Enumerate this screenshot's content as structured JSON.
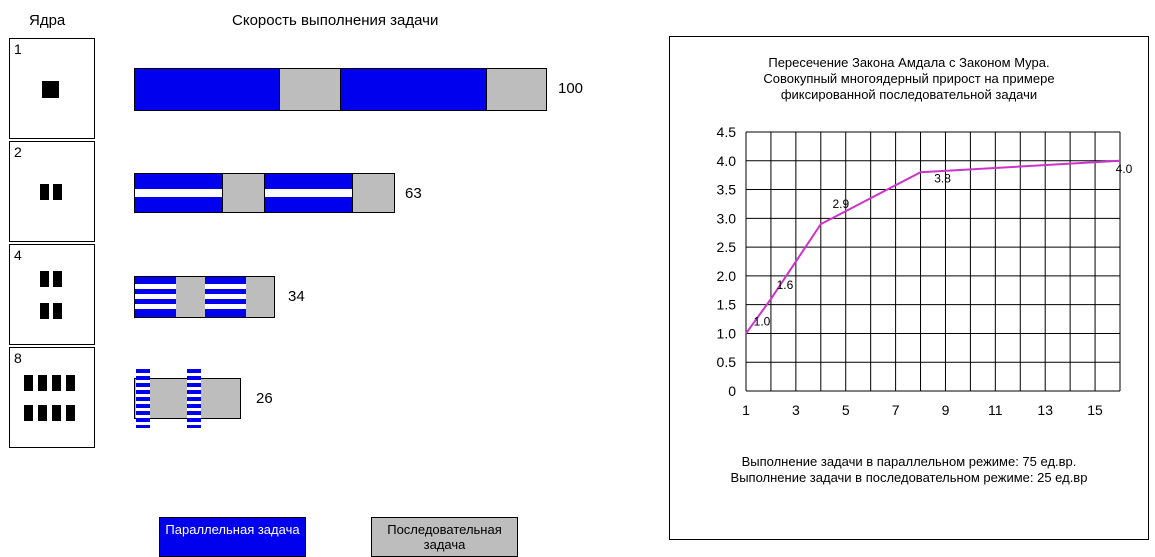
{
  "headers": {
    "cores": "Ядра",
    "speed": "Скорость выполнения задачи"
  },
  "cores": [
    {
      "label": "1",
      "speed": "100"
    },
    {
      "label": "2",
      "speed": "63"
    },
    {
      "label": "4",
      "speed": "34"
    },
    {
      "label": "8",
      "speed": "26"
    }
  ],
  "legend": {
    "parallel": "Параллельная задача",
    "sequential": "Последовательная задача"
  },
  "colors": {
    "parallel": "#0000ee",
    "sequential": "#bdbdbd",
    "curve": "#cc33cc"
  },
  "chart_data": {
    "type": "line",
    "title": [
      "Пересечение Закона Амдала с Законом Мура.",
      "Совокупный многоядерный прирост на примере",
      "фиксированной последовательной задачи"
    ],
    "x": [
      1,
      2,
      4,
      8,
      16
    ],
    "y": [
      1.0,
      1.6,
      2.9,
      3.8,
      4.0
    ],
    "point_labels": [
      "1.0",
      "1.6",
      "2.9",
      "3.8",
      "4.0"
    ],
    "xlim": [
      1,
      16
    ],
    "ylim": [
      0,
      4.5
    ],
    "xticks": [
      "1",
      "3",
      "5",
      "7",
      "9",
      "11",
      "13",
      "15"
    ],
    "yticks": [
      "0",
      "0.5",
      "1.0",
      "1.5",
      "2.0",
      "2.5",
      "3.0",
      "3.5",
      "4.0",
      "4.5"
    ],
    "grid": true,
    "notes": [
      "Выполнение задачи в параллельном режиме: 75 ед.вр.",
      "Выполнение задачи в последовательном режиме: 25 ед.вр"
    ]
  }
}
